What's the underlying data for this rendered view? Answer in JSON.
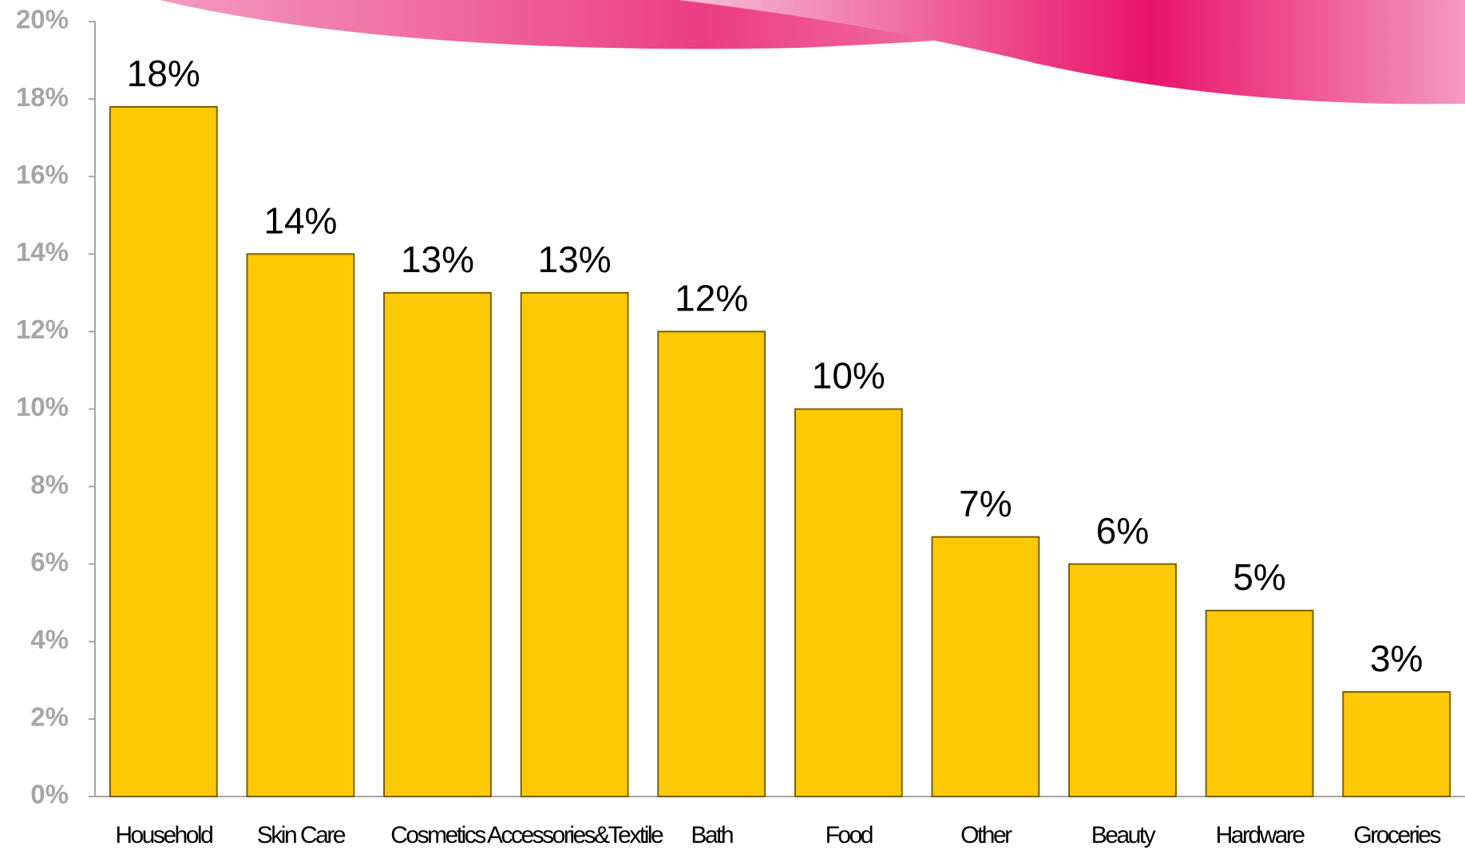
{
  "chart_data": {
    "type": "bar",
    "categories": [
      "Household",
      "Skin Care",
      "Cosmetics",
      "Accessories&Textile",
      "Bath",
      "Food",
      "Other",
      "Beauty",
      "Hardware",
      "Groceries"
    ],
    "values": [
      17.8,
      14,
      13,
      13,
      12,
      10,
      6.7,
      6,
      4.8,
      2.7
    ],
    "value_labels": [
      "18%",
      "14%",
      "13%",
      "13%",
      "12%",
      "10%",
      "7%",
      "6%",
      "5%",
      "3%"
    ],
    "color": "#fdc905",
    "ylim": [
      0,
      20
    ],
    "yticks": [
      {
        "value": 0,
        "label": "0%"
      },
      {
        "value": 2,
        "label": "2%"
      },
      {
        "value": 4,
        "label": "4%"
      },
      {
        "value": 6,
        "label": "6%"
      },
      {
        "value": 8,
        "label": "8%"
      },
      {
        "value": 10,
        "label": "10%"
      },
      {
        "value": 12,
        "label": "12%"
      },
      {
        "value": 14,
        "label": "14%"
      },
      {
        "value": 16,
        "label": "16%"
      },
      {
        "value": 18,
        "label": "18%"
      },
      {
        "value": 20,
        "label": "20%"
      }
    ],
    "grid": false
  }
}
